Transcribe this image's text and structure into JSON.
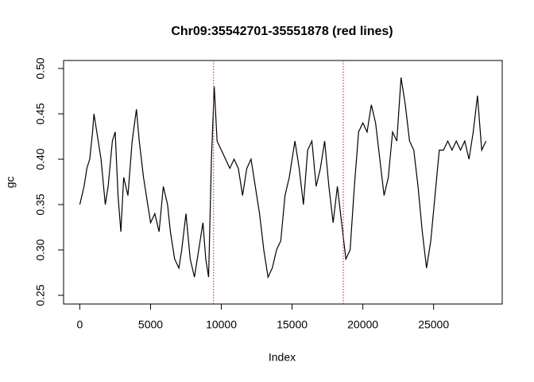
{
  "chart_data": {
    "type": "line",
    "title": "Chr09:35542701-35551878  (red lines)",
    "x_label": "Index",
    "y_label": "gc",
    "x": [
      0,
      300,
      500,
      700,
      900,
      1000,
      1200,
      1500,
      1800,
      2000,
      2300,
      2500,
      2700,
      2900,
      3100,
      3400,
      3700,
      4000,
      4200,
      4500,
      4800,
      5000,
      5300,
      5600,
      5900,
      6200,
      6400,
      6700,
      7000,
      7200,
      7500,
      7800,
      8100,
      8400,
      8700,
      8900,
      9100,
      9300,
      9500,
      9700,
      10000,
      10300,
      10600,
      10900,
      11200,
      11500,
      11800,
      12100,
      12400,
      12700,
      13000,
      13300,
      13600,
      13900,
      14200,
      14500,
      14800,
      15200,
      15500,
      15800,
      16100,
      16400,
      16700,
      17000,
      17300,
      17600,
      17900,
      18200,
      18500,
      18800,
      19100,
      19400,
      19700,
      20000,
      20300,
      20600,
      20900,
      21200,
      21500,
      21800,
      22100,
      22400,
      22700,
      23000,
      23300,
      23600,
      23900,
      24200,
      24500,
      24800,
      25100,
      25400,
      25700,
      26000,
      26300,
      26600,
      26900,
      27200,
      27500,
      27800,
      28100,
      28400,
      28700
    ],
    "values": [
      0.35,
      0.37,
      0.39,
      0.4,
      0.43,
      0.45,
      0.43,
      0.4,
      0.35,
      0.37,
      0.42,
      0.43,
      0.36,
      0.32,
      0.38,
      0.36,
      0.42,
      0.455,
      0.42,
      0.38,
      0.35,
      0.33,
      0.34,
      0.32,
      0.37,
      0.35,
      0.32,
      0.29,
      0.28,
      0.3,
      0.34,
      0.29,
      0.27,
      0.3,
      0.33,
      0.29,
      0.27,
      0.4,
      0.48,
      0.42,
      0.41,
      0.4,
      0.39,
      0.4,
      0.39,
      0.36,
      0.39,
      0.4,
      0.37,
      0.34,
      0.3,
      0.27,
      0.28,
      0.3,
      0.31,
      0.36,
      0.38,
      0.42,
      0.39,
      0.35,
      0.41,
      0.42,
      0.37,
      0.39,
      0.42,
      0.37,
      0.33,
      0.37,
      0.33,
      0.29,
      0.3,
      0.37,
      0.43,
      0.44,
      0.43,
      0.46,
      0.44,
      0.4,
      0.36,
      0.38,
      0.43,
      0.42,
      0.49,
      0.46,
      0.42,
      0.41,
      0.37,
      0.32,
      0.28,
      0.31,
      0.36,
      0.41,
      0.41,
      0.42,
      0.41,
      0.42,
      0.41,
      0.42,
      0.4,
      0.43,
      0.47,
      0.41,
      0.42
    ],
    "color": "#000000",
    "vlines": {
      "x": [
        9450,
        18620
      ],
      "color": "#ff0000"
    },
    "xlim": [
      -1148,
      29848
    ],
    "xticks": [
      0,
      5000,
      10000,
      15000,
      20000,
      25000
    ],
    "ylim": [
      0.2404,
      0.5088
    ],
    "yticks": [
      0.25,
      {
        "value": 0.3,
        "label": "0.30"
      },
      0.35,
      {
        "value": 0.4,
        "label": "0.40"
      },
      0.45,
      {
        "value": 0.5,
        "label": "0.50"
      }
    ]
  }
}
